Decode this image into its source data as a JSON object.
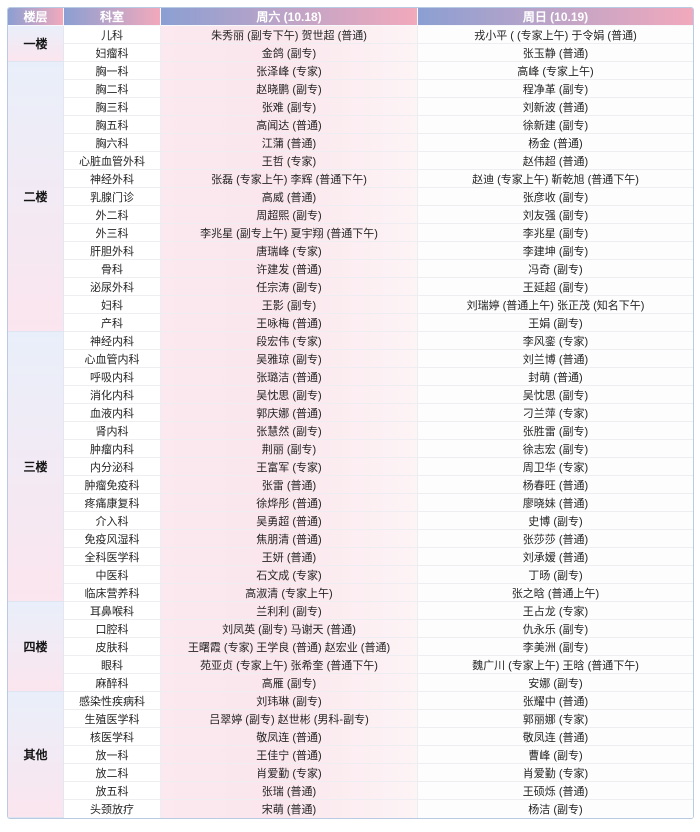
{
  "colors": {
    "header_from": "#8b9fd2",
    "header_to": "#f2a9bc",
    "floor_from": "#e9effa",
    "floor_to": "#fbe5ee",
    "sat_from": "#fbe9ef",
    "sat_mid": "#fae6ec",
    "sat_to": "#fdf4f6",
    "border_color": "#b9cbe3"
  },
  "header": {
    "floor": "楼层",
    "department": "科室",
    "saturday": "周六 (10.18)",
    "sunday": "周日 (10.19)"
  },
  "groups": [
    {
      "floor": "一楼",
      "rows": [
        {
          "dept": "儿科",
          "sat": "朱秀丽 (副专下午) 贺世超 (普通)",
          "sun": "戎小平 ( (专家上午) 于令娟 (普通)"
        },
        {
          "dept": "妇瘤科",
          "sat": "金鸽 (副专)",
          "sun": "张玉静 (普通)"
        }
      ]
    },
    {
      "floor": "二楼",
      "rows": [
        {
          "dept": "胸一科",
          "sat": "张泽峰 (专家)",
          "sun": "高峰 (专家上午)"
        },
        {
          "dept": "胸二科",
          "sat": "赵晓鹏 (副专)",
          "sun": "程净革 (副专)"
        },
        {
          "dept": "胸三科",
          "sat": "张难 (副专)",
          "sun": "刘新波 (普通)"
        },
        {
          "dept": "胸五科",
          "sat": "高闻达 (普通)",
          "sun": "徐新建 (副专)"
        },
        {
          "dept": "胸六科",
          "sat": "江蒲 (普通)",
          "sun": "杨金 (普通)"
        },
        {
          "dept": "心脏血管外科",
          "sat": "王哲 (专家)",
          "sun": "赵伟超 (普通)"
        },
        {
          "dept": "神经外科",
          "sat": "张磊 (专家上午) 李辉 (普通下午)",
          "sun": "赵迪 (专家上午) 靳乾旭 (普通下午)"
        },
        {
          "dept": "乳腺门诊",
          "sat": "高威 (普通)",
          "sun": "张彦收 (副专)"
        },
        {
          "dept": "外二科",
          "sat": "周超熙 (副专)",
          "sun": "刘友强 (副专)"
        },
        {
          "dept": "外三科",
          "sat": "李兆星 (副专上午) 夏宇翔 (普通下午)",
          "sun": "李兆星 (副专)"
        },
        {
          "dept": "肝胆外科",
          "sat": "唐瑞峰 (专家)",
          "sun": "李建坤 (副专)"
        },
        {
          "dept": "骨科",
          "sat": "许建发 (普通)",
          "sun": "冯奇 (副专)"
        },
        {
          "dept": "泌尿外科",
          "sat": "任宗涛 (副专)",
          "sun": "王延超 (副专)"
        },
        {
          "dept": "妇科",
          "sat": "王影 (副专)",
          "sun": "刘瑞婷 (普通上午) 张正茂 (知名下午)"
        },
        {
          "dept": "产科",
          "sat": "王咏梅 (普通)",
          "sun": "王娟 (副专)"
        }
      ]
    },
    {
      "floor": "三楼",
      "rows": [
        {
          "dept": "神经内科",
          "sat": "段宏伟 (专家)",
          "sun": "李风銮 (专家)"
        },
        {
          "dept": "心血管内科",
          "sat": "吴雅琼 (副专)",
          "sun": "刘兰博 (普通)"
        },
        {
          "dept": "呼吸内科",
          "sat": "张璐洁 (普通)",
          "sun": "封萌 (普通)"
        },
        {
          "dept": "消化内科",
          "sat": "吴忱思 (副专)",
          "sun": "吴忱思 (副专)"
        },
        {
          "dept": "血液内科",
          "sat": "郭庆娜 (普通)",
          "sun": "刁兰萍 (专家)"
        },
        {
          "dept": "肾内科",
          "sat": "张慧然 (副专)",
          "sun": "张胜雷 (副专)"
        },
        {
          "dept": "肿瘤内科",
          "sat": "荆丽 (副专)",
          "sun": "徐志宏 (副专)"
        },
        {
          "dept": "内分泌科",
          "sat": "王富军 (专家)",
          "sun": "周卫华 (专家)"
        },
        {
          "dept": "肿瘤免疫科",
          "sat": "张雷 (普通)",
          "sun": "杨春旺 (普通)"
        },
        {
          "dept": "疼痛康复科",
          "sat": "徐烨彤 (普通)",
          "sun": "廖晓妹 (普通)"
        },
        {
          "dept": "介入科",
          "sat": "吴勇超 (普通)",
          "sun": "史博 (副专)"
        },
        {
          "dept": "免疫风湿科",
          "sat": "焦朋清 (普通)",
          "sun": "张莎莎 (普通)"
        },
        {
          "dept": "全科医学科",
          "sat": "王妍 (普通)",
          "sun": "刘承嫒 (普通)"
        },
        {
          "dept": "中医科",
          "sat": "石文成 (专家)",
          "sun": "丁旸 (副专)"
        },
        {
          "dept": "临床营养科",
          "sat": "高淑清 (专家上午)",
          "sun": "张之晗 (普通上午)"
        }
      ]
    },
    {
      "floor": "四楼",
      "rows": [
        {
          "dept": "耳鼻喉科",
          "sat": "兰利利 (副专)",
          "sun": "王占龙 (专家)"
        },
        {
          "dept": "口腔科",
          "sat": "刘凤英 (副专) 马谢天 (普通)",
          "sun": "仇永乐 (副专)"
        },
        {
          "dept": "皮肤科",
          "sat": "王曙霞 (专家) 王学良 (普通) 赵宏业 (普通)",
          "sun": "李美洲 (副专)"
        },
        {
          "dept": "眼科",
          "sat": "苑亚贞 (专家上午) 张希奎 (普通下午)",
          "sun": "魏广川 (专家上午) 王晗 (普通下午)"
        },
        {
          "dept": "麻醉科",
          "sat": "高雁 (副专)",
          "sun": "安娜 (副专)"
        }
      ]
    },
    {
      "floor": "其他",
      "rows": [
        {
          "dept": "感染性疾病科",
          "sat": "刘玮琳 (副专)",
          "sun": "张耀中 (普通)"
        },
        {
          "dept": "生殖医学科",
          "sat": "吕翠婷 (副专) 赵世彬 (男科-副专)",
          "sun": "郭丽娜 (专家)"
        },
        {
          "dept": "核医学科",
          "sat": "敬凤连 (普通)",
          "sun": "敬凤连 (普通)"
        },
        {
          "dept": "放一科",
          "sat": "王佳宁 (普通)",
          "sun": "曹峰 (副专)"
        },
        {
          "dept": "放二科",
          "sat": "肖爱勤 (专家)",
          "sun": "肖爱勤 (专家)"
        },
        {
          "dept": "放五科",
          "sat": "张瑞 (普通)",
          "sun": "王硕烁 (普通)"
        },
        {
          "dept": "头颈放疗",
          "sat": "宋萌 (普通)",
          "sun": "杨洁 (副专)"
        }
      ]
    }
  ]
}
